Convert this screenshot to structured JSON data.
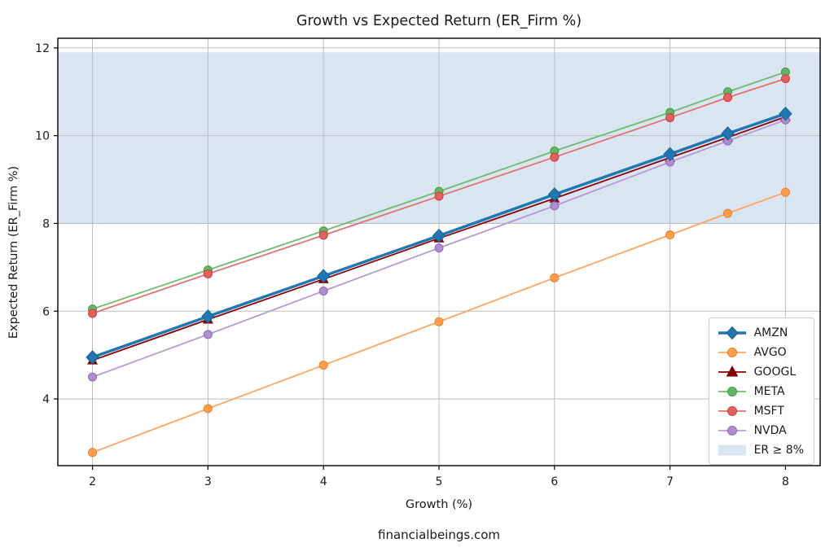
{
  "page": {
    "title": "Growth vs Expected Return (ER_Firm %)",
    "caption": "financialbeings.com"
  },
  "chart_data": {
    "type": "line",
    "title": "Growth vs Expected Return (ER_Firm %)",
    "xlabel": "Growth (%)",
    "ylabel": "Expected Return (ER_Firm %)",
    "caption": "financialbeings.com",
    "x": [
      2,
      3,
      4,
      5,
      6,
      7,
      7.5,
      8
    ],
    "series": [
      {
        "name": "AMZN",
        "marker": "diamond",
        "line_color": "#1f77b4",
        "fill": "#1f77b4",
        "edge": "#17608f",
        "line_width": 3.5,
        "values": [
          4.95,
          5.88,
          6.8,
          7.72,
          8.66,
          9.58,
          10.05,
          10.5
        ]
      },
      {
        "name": "AVGO",
        "marker": "circle",
        "line_color": "#ffa45c",
        "fill": "#ff9f4e",
        "edge": "#ed7d21",
        "line_width": 1.8,
        "values": [
          2.78,
          3.78,
          4.77,
          5.76,
          6.76,
          7.74,
          8.23,
          8.71
        ]
      },
      {
        "name": "GOOGL",
        "marker": "triangle",
        "line_color": "#8b0000",
        "fill": "#8b0000",
        "edge": "#6e0000",
        "line_width": 1.8,
        "values": [
          4.88,
          5.81,
          6.73,
          7.66,
          8.57,
          9.5,
          9.96,
          10.43
        ]
      },
      {
        "name": "META",
        "marker": "circle",
        "line_color": "#6cbb6c",
        "fill": "#63b663",
        "edge": "#3d9c3d",
        "line_width": 1.8,
        "values": [
          6.05,
          6.94,
          7.83,
          8.73,
          9.65,
          10.53,
          11.0,
          11.45
        ]
      },
      {
        "name": "MSFT",
        "marker": "circle",
        "line_color": "#e4706e",
        "fill": "#e0615f",
        "edge": "#cb3a3b",
        "line_width": 1.8,
        "values": [
          5.95,
          6.85,
          7.73,
          8.62,
          9.51,
          10.41,
          10.87,
          11.3
        ]
      },
      {
        "name": "NVDA",
        "marker": "circle",
        "line_color": "#b49ad2",
        "fill": "#ad8fcd",
        "edge": "#9066ba",
        "line_width": 1.8,
        "values": [
          4.5,
          5.47,
          6.46,
          7.44,
          8.4,
          9.4,
          9.88,
          10.36
        ]
      }
    ],
    "band": {
      "label": "ER ≥ 8%",
      "from": 8,
      "to": 11.9,
      "color": "#d9e6f2"
    },
    "xticks": [
      2,
      3,
      4,
      5,
      6,
      7,
      8
    ],
    "yticks": [
      4,
      6,
      8,
      10,
      12
    ],
    "xlim": [
      1.7,
      8.3
    ],
    "ylim": [
      2.48,
      12.22
    ],
    "grid": true,
    "grid_color": "#bdbdbd",
    "text_color": "#1a1a1a",
    "legend_position": "lower right"
  }
}
